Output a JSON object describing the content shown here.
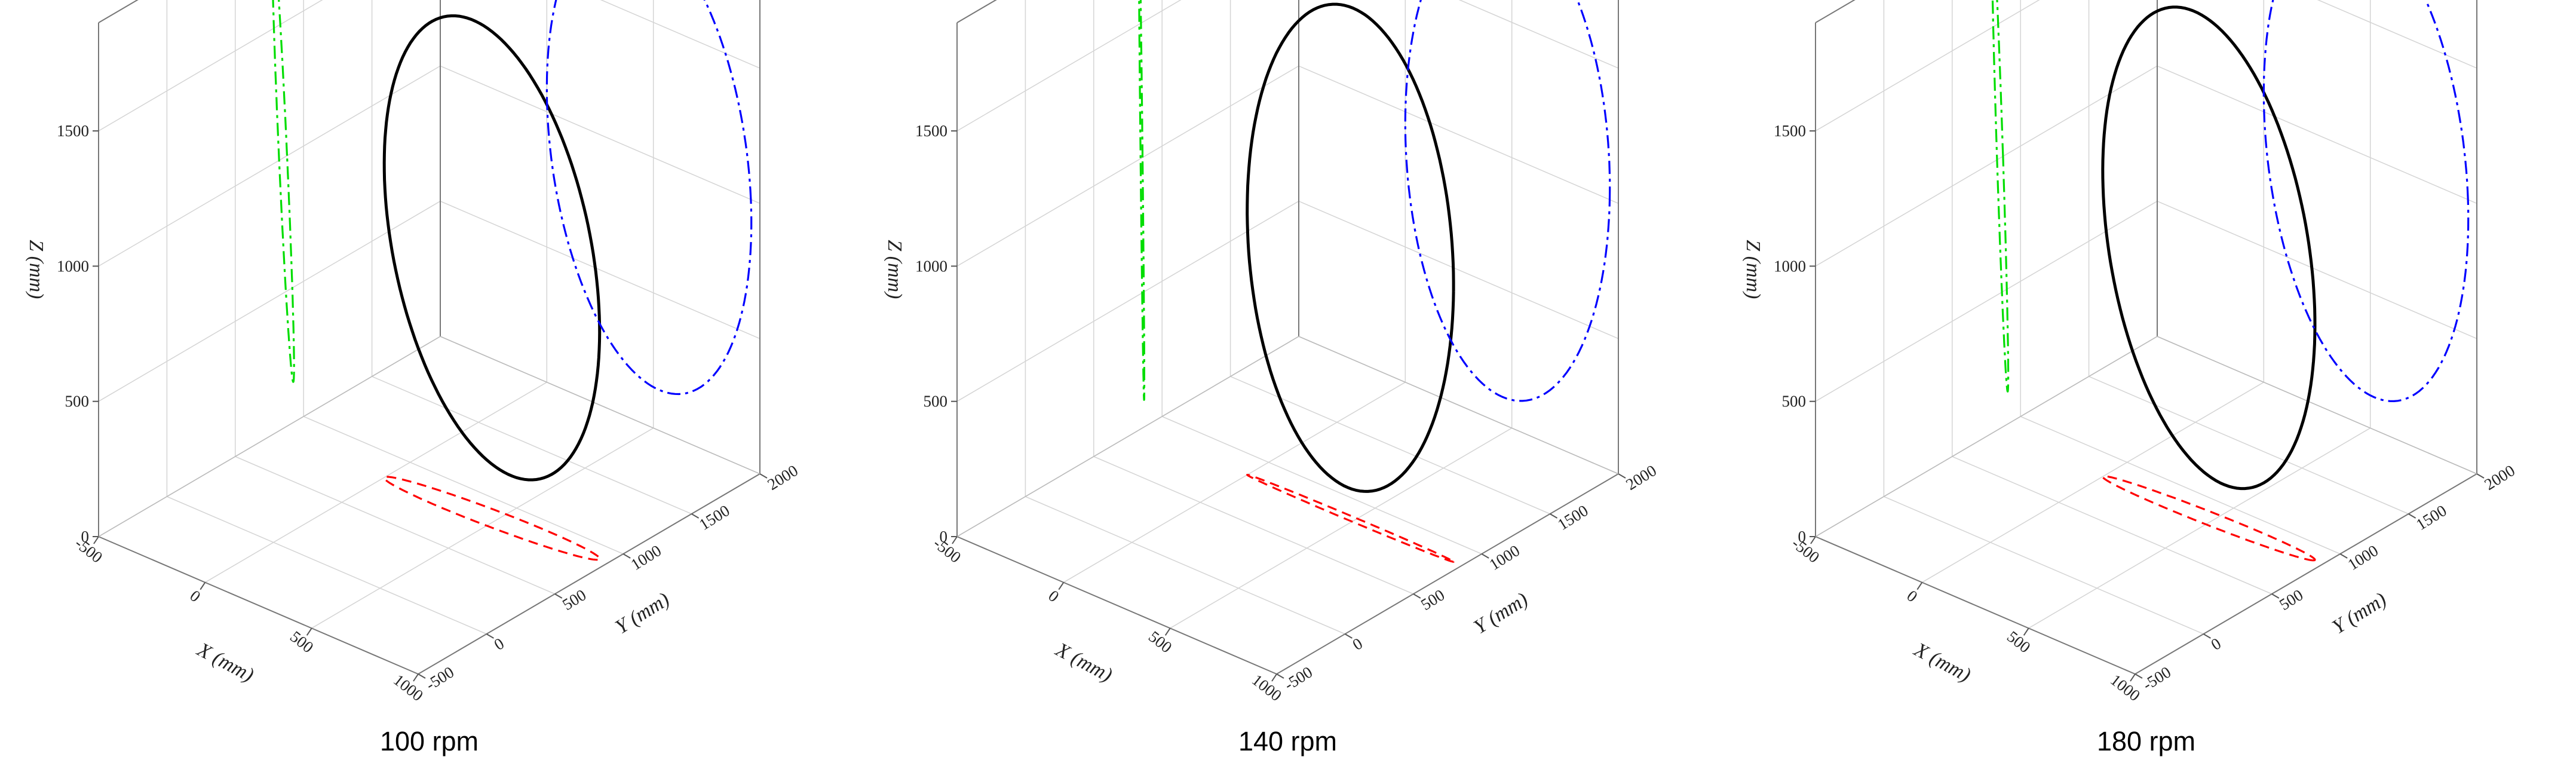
{
  "chart_data": [
    {
      "type": "line",
      "subtype": "3d-trajectory-with-projections",
      "caption": "100 rpm",
      "axes": {
        "x": {
          "label": "X",
          "unit": "(mm)",
          "range": [
            -500,
            1000
          ],
          "ticks": [
            "-500",
            "0",
            "500",
            "1000"
          ]
        },
        "y": {
          "label": "Y",
          "unit": "(mm)",
          "range": [
            -500,
            2000
          ],
          "ticks": [
            "-500",
            "0",
            "500",
            "1000",
            "1500",
            "2000"
          ]
        },
        "z": {
          "label": "Z",
          "unit": "(mm)",
          "range": [
            0,
            1900
          ],
          "ticks": [
            "0",
            "500",
            "1000",
            "1500"
          ]
        }
      },
      "grid": true,
      "trajectory": {
        "center": [
          480,
          850,
          1000
        ],
        "radius_x": 480,
        "radius_y": 80,
        "radius_z": 850
      },
      "series": [
        {
          "role": "3d-trajectory",
          "color": "#000000",
          "style": "solid"
        },
        {
          "role": "projection-xz",
          "color": "#0000ff",
          "style": "dash-dot"
        },
        {
          "role": "projection-yz",
          "color": "#00dd00",
          "style": "dash-dot"
        },
        {
          "role": "projection-xy",
          "color": "#ff0000",
          "style": "dashed"
        }
      ]
    },
    {
      "type": "line",
      "subtype": "3d-trajectory-with-projections",
      "caption": "140 rpm",
      "axes": {
        "x": {
          "label": "X",
          "unit": "(mm)",
          "range": [
            -500,
            1000
          ],
          "ticks": [
            "-500",
            "0",
            "500",
            "1000"
          ]
        },
        "y": {
          "label": "Y",
          "unit": "(mm)",
          "range": [
            -500,
            2000
          ],
          "ticks": [
            "-500",
            "0",
            "500",
            "1000",
            "1500",
            "2000"
          ]
        },
        "z": {
          "label": "Z",
          "unit": "(mm)",
          "range": [
            0,
            1900
          ],
          "ticks": [
            "0",
            "500",
            "1000",
            "1500"
          ]
        }
      },
      "grid": true,
      "trajectory": {
        "center": [
          480,
          850,
          1000
        ],
        "radius_x": 480,
        "radius_y": 20,
        "radius_z": 900
      },
      "series": [
        {
          "role": "3d-trajectory",
          "color": "#000000",
          "style": "solid"
        },
        {
          "role": "projection-xz",
          "color": "#0000ff",
          "style": "dash-dot"
        },
        {
          "role": "projection-yz",
          "color": "#00dd00",
          "style": "dash-dot"
        },
        {
          "role": "projection-xy",
          "color": "#ff0000",
          "style": "dashed"
        }
      ]
    },
    {
      "type": "line",
      "subtype": "3d-trajectory-with-projections",
      "caption": "180 rpm",
      "axes": {
        "x": {
          "label": "X",
          "unit": "(mm)",
          "range": [
            -500,
            1000
          ],
          "ticks": [
            "-500",
            "0",
            "500",
            "1000"
          ]
        },
        "y": {
          "label": "Y",
          "unit": "(mm)",
          "range": [
            -500,
            2000
          ],
          "ticks": [
            "-500",
            "0",
            "500",
            "1000",
            "1500",
            "2000"
          ]
        },
        "z": {
          "label": "Z",
          "unit": "(mm)",
          "range": [
            0,
            1900
          ],
          "ticks": [
            "0",
            "500",
            "1000",
            "1500"
          ]
        }
      },
      "grid": true,
      "trajectory": {
        "center": [
          480,
          850,
          1000
        ],
        "radius_x": 480,
        "radius_y": 60,
        "radius_z": 880
      },
      "series": [
        {
          "role": "3d-trajectory",
          "color": "#000000",
          "style": "solid"
        },
        {
          "role": "projection-xz",
          "color": "#0000ff",
          "style": "dash-dot"
        },
        {
          "role": "projection-yz",
          "color": "#00dd00",
          "style": "dash-dot"
        },
        {
          "role": "projection-xy",
          "color": "#ff0000",
          "style": "dashed"
        }
      ]
    }
  ]
}
